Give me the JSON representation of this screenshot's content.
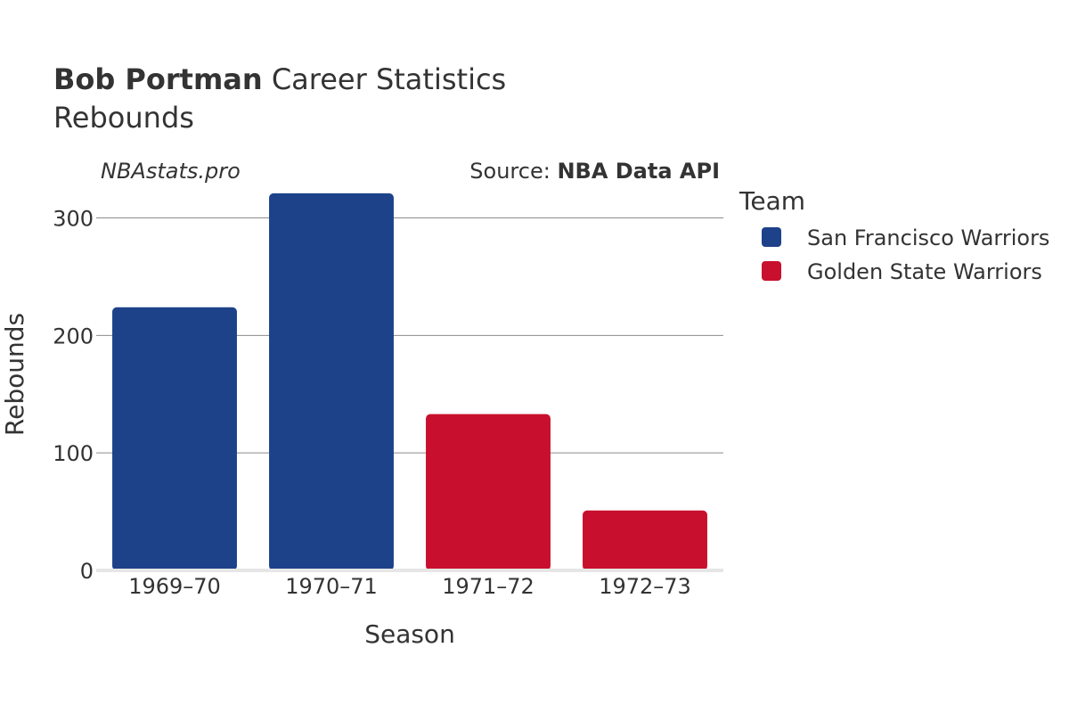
{
  "chart_data": {
    "type": "bar",
    "title_bold": "Bob Portman",
    "title_rest": "Career Statistics",
    "subtitle": "Rebounds",
    "brand": "NBAstats.pro",
    "source_label": "Source:",
    "source_name": "NBA Data API",
    "xlabel": "Season",
    "ylabel": "Rebounds",
    "ylim": [
      0,
      330
    ],
    "yticks": [
      0,
      100,
      200,
      300
    ],
    "grid": true,
    "categories": [
      "1969–70",
      "1970–71",
      "1971–72",
      "1972–73"
    ],
    "values": [
      224,
      321,
      133,
      51
    ],
    "bar_teams": [
      "San Francisco Warriors",
      "San Francisco Warriors",
      "Golden State Warriors",
      "Golden State Warriors"
    ],
    "legend": {
      "title": "Team",
      "position": "right",
      "entries": [
        {
          "name": "San Francisco Warriors",
          "color": "#1d428a"
        },
        {
          "name": "Golden State Warriors",
          "color": "#c8102e"
        }
      ]
    }
  }
}
